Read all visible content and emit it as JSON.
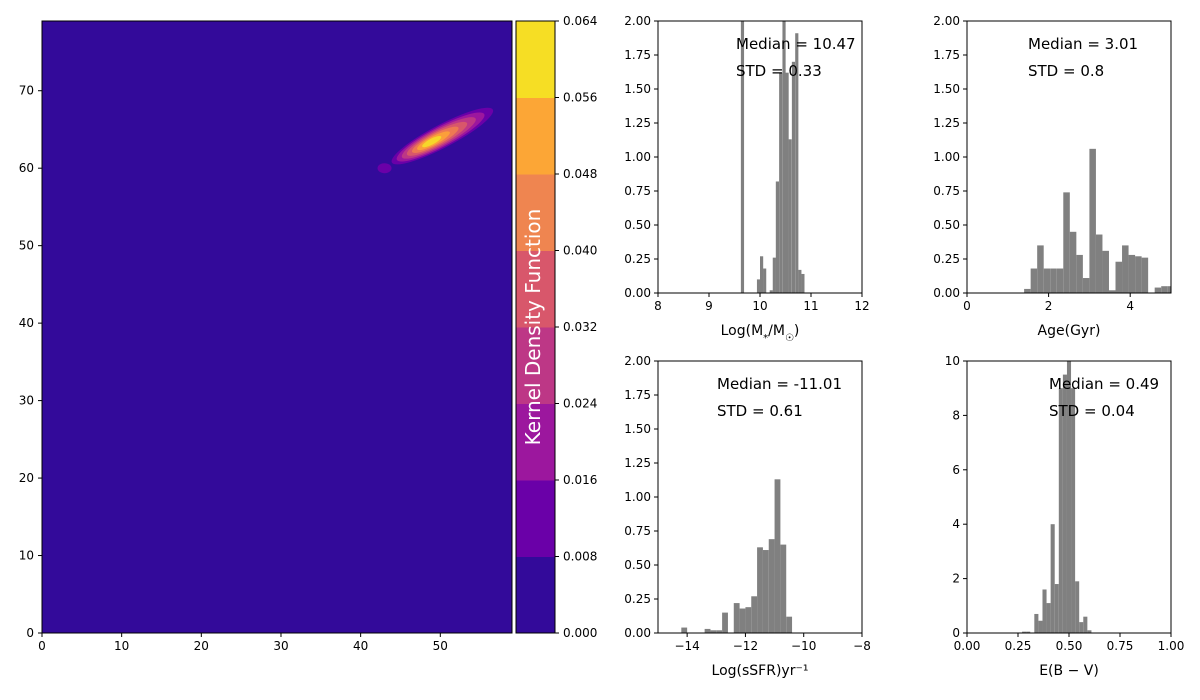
{
  "chart_data": [
    {
      "type": "heatmap",
      "title": "",
      "xlabel": "",
      "ylabel": "",
      "xlim": [
        0,
        59
      ],
      "ylim": [
        0,
        79
      ],
      "xticks": [
        "0",
        "10",
        "20",
        "30",
        "40",
        "50"
      ],
      "yticks": [
        "0",
        "10",
        "20",
        "30",
        "40",
        "50",
        "60",
        "70"
      ],
      "background_color": "#330A9A",
      "kde_levels": [
        {
          "level": 0.008,
          "color": "#6A00A8"
        },
        {
          "level": 0.016,
          "color": "#9C179E"
        },
        {
          "level": 0.024,
          "color": "#BD3786"
        },
        {
          "level": 0.032,
          "color": "#D8576B"
        },
        {
          "level": 0.04,
          "color": "#ED7953"
        },
        {
          "level": 0.048,
          "color": "#FB9F3A"
        },
        {
          "level": 0.056,
          "color": "#F6D72A"
        }
      ],
      "density_ridge": {
        "from": [
          43,
          60
        ],
        "to": [
          56,
          67
        ],
        "peak": [
          48.5,
          63.5
        ]
      },
      "colorbar": {
        "label": "Kernel Density Function",
        "ticks": [
          "0.000",
          "0.008",
          "0.016",
          "0.024",
          "0.032",
          "0.040",
          "0.048",
          "0.056",
          "0.064"
        ],
        "colors": [
          "#330A9A",
          "#6A00A8",
          "#9C179E",
          "#BD3786",
          "#D8576B",
          "#EF8550",
          "#FCA636",
          "#F6DE24"
        ]
      }
    },
    {
      "type": "bar",
      "xlabel": "Log(M*/M☉)",
      "xlim": [
        8,
        12
      ],
      "ylim": [
        0,
        2
      ],
      "xticks": [
        "8",
        "9",
        "10",
        "11",
        "12"
      ],
      "yticks": [
        "0.00",
        "0.25",
        "0.50",
        "0.75",
        "1.00",
        "1.25",
        "1.50",
        "1.75",
        "2.00"
      ],
      "annotations": [
        "Median = 10.47",
        "STD = 0.33"
      ],
      "bin_width": 0.0625,
      "bins": [
        [
          9.625,
          2.0
        ],
        [
          9.94,
          0.1
        ],
        [
          10.0,
          0.27
        ],
        [
          10.06,
          0.18
        ],
        [
          10.19,
          0.02
        ],
        [
          10.25,
          0.26
        ],
        [
          10.31,
          0.82
        ],
        [
          10.375,
          1.62
        ],
        [
          10.44,
          2.0
        ],
        [
          10.5,
          1.62
        ],
        [
          10.56,
          1.13
        ],
        [
          10.625,
          1.7
        ],
        [
          10.69,
          1.91
        ],
        [
          10.75,
          0.17
        ],
        [
          10.81,
          0.14
        ]
      ]
    },
    {
      "type": "bar",
      "xlabel": "Age(Gyr)",
      "xlim": [
        0,
        5
      ],
      "ylim": [
        0,
        2
      ],
      "xticks": [
        "0",
        "2",
        "4"
      ],
      "yticks": [
        "0.00",
        "0.25",
        "0.50",
        "0.75",
        "1.00",
        "1.25",
        "1.50",
        "1.75",
        "2.00"
      ],
      "annotations": [
        "Median = 3.01",
        "STD = 0.8"
      ],
      "bin_width": 0.16,
      "bins": [
        [
          1.4,
          0.03
        ],
        [
          1.56,
          0.18
        ],
        [
          1.72,
          0.35
        ],
        [
          1.88,
          0.18
        ],
        [
          2.04,
          0.18
        ],
        [
          2.2,
          0.18
        ],
        [
          2.36,
          0.74
        ],
        [
          2.52,
          0.45
        ],
        [
          2.68,
          0.28
        ],
        [
          2.84,
          0.11
        ],
        [
          3.0,
          1.06
        ],
        [
          3.16,
          0.43
        ],
        [
          3.32,
          0.31
        ],
        [
          3.48,
          0.02
        ],
        [
          3.64,
          0.23
        ],
        [
          3.8,
          0.35
        ],
        [
          3.96,
          0.28
        ],
        [
          4.12,
          0.27
        ],
        [
          4.28,
          0.26
        ],
        [
          4.6,
          0.04
        ],
        [
          4.76,
          0.05
        ],
        [
          4.92,
          0.05
        ]
      ]
    },
    {
      "type": "bar",
      "xlabel": "Log(sSFR)yr⁻¹",
      "xlim": [
        -15,
        -8
      ],
      "ylim": [
        0,
        2
      ],
      "xticks": [
        "−14",
        "−12",
        "−10",
        "−8"
      ],
      "yticks": [
        "0.00",
        "0.25",
        "0.50",
        "0.75",
        "1.00",
        "1.25",
        "1.50",
        "1.75",
        "2.00"
      ],
      "annotations": [
        "Median = -11.01",
        "STD = 0.61"
      ],
      "bin_width": 0.2,
      "bins": [
        [
          -14.2,
          0.04
        ],
        [
          -13.4,
          0.03
        ],
        [
          -13.2,
          0.02
        ],
        [
          -13.0,
          0.02
        ],
        [
          -12.8,
          0.15
        ],
        [
          -12.4,
          0.22
        ],
        [
          -12.2,
          0.18
        ],
        [
          -12.0,
          0.19
        ],
        [
          -11.8,
          0.27
        ],
        [
          -11.6,
          0.63
        ],
        [
          -11.4,
          0.61
        ],
        [
          -11.2,
          0.69
        ],
        [
          -11.0,
          1.13
        ],
        [
          -10.8,
          0.65
        ],
        [
          -10.6,
          0.12
        ]
      ]
    },
    {
      "type": "bar",
      "xlabel": "E(B − V)",
      "xlim": [
        0,
        1
      ],
      "ylim": [
        0,
        10
      ],
      "xticks": [
        "0.00",
        "0.25",
        "0.50",
        "0.75",
        "1.00"
      ],
      "yticks": [
        "0",
        "2",
        "4",
        "6",
        "8",
        "10"
      ],
      "annotations": [
        "Median = 0.49",
        "STD = 0.04"
      ],
      "bin_width": 0.02,
      "bins": [
        [
          0.27,
          0.05
        ],
        [
          0.29,
          0.05
        ],
        [
          0.33,
          0.7
        ],
        [
          0.35,
          0.45
        ],
        [
          0.37,
          1.6
        ],
        [
          0.39,
          1.1
        ],
        [
          0.41,
          4.0
        ],
        [
          0.43,
          1.8
        ],
        [
          0.45,
          9.0
        ],
        [
          0.47,
          9.5
        ],
        [
          0.49,
          10.0
        ],
        [
          0.51,
          9.0
        ],
        [
          0.53,
          1.9
        ],
        [
          0.55,
          0.4
        ],
        [
          0.57,
          0.6
        ],
        [
          0.59,
          0.1
        ]
      ]
    }
  ]
}
